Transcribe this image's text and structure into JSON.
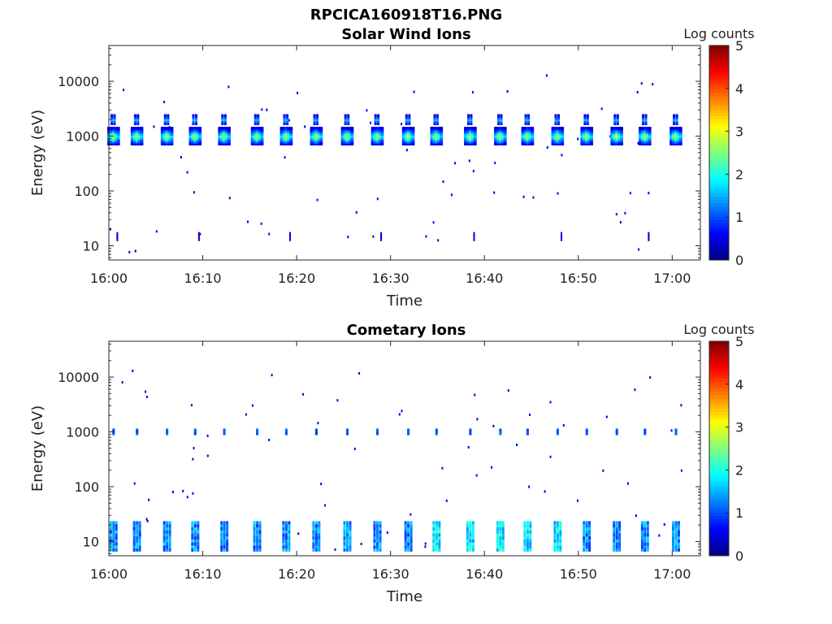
{
  "figure_title": "RPCICA160918T16.PNG",
  "chart_data": [
    {
      "type": "heatmap",
      "title": "Solar Wind Ions",
      "xlabel": "Time",
      "ylabel": "Energy (eV)",
      "x_ticks": [
        "16:00",
        "16:10",
        "16:20",
        "16:30",
        "16:40",
        "16:50",
        "17:00"
      ],
      "x_range_minutes": [
        0,
        63
      ],
      "y_scale": "log",
      "y_range": [
        5.5,
        45000
      ],
      "y_ticks": [
        10,
        100,
        1000,
        10000
      ],
      "y_tick_labels": [
        "10",
        "100",
        "1000",
        "10000"
      ],
      "colorbar": {
        "label": "Log counts",
        "range": [
          0,
          5
        ],
        "ticks": [
          "0",
          "1",
          "2",
          "3",
          "4",
          "5"
        ],
        "colormap": "jet"
      },
      "scan_times_minutes": [
        0.5,
        3.0,
        6.2,
        9.2,
        12.3,
        15.8,
        18.9,
        22.1,
        25.4,
        28.6,
        31.9,
        34.9,
        38.5,
        41.7,
        44.6,
        47.8,
        50.9,
        54.1,
        57.1,
        60.4
      ],
      "main_peak_energy_ev": 1000,
      "main_peak_log_counts": 2.9,
      "secondary_peak_energy_ev": 2000,
      "secondary_peak_log_counts": 1.4
    },
    {
      "type": "heatmap",
      "title": "Cometary Ions",
      "xlabel": "Time",
      "ylabel": "Energy (eV)",
      "x_ticks": [
        "16:00",
        "16:10",
        "16:20",
        "16:30",
        "16:40",
        "16:50",
        "17:00"
      ],
      "x_range_minutes": [
        0,
        63
      ],
      "y_scale": "log",
      "y_range": [
        5.5,
        45000
      ],
      "y_ticks": [
        10,
        100,
        1000,
        10000
      ],
      "y_tick_labels": [
        "10",
        "100",
        "1000",
        "10000"
      ],
      "colorbar": {
        "label": "Log counts",
        "range": [
          0,
          5
        ],
        "ticks": [
          "0",
          "1",
          "2",
          "3",
          "4",
          "5"
        ],
        "colormap": "jet"
      },
      "scan_times_minutes": [
        0.5,
        3.0,
        6.2,
        9.2,
        12.3,
        15.8,
        18.9,
        22.1,
        25.4,
        28.6,
        31.9,
        34.9,
        38.5,
        41.7,
        44.6,
        47.8,
        50.9,
        54.1,
        57.1,
        60.4
      ],
      "low_energy_band_ev": [
        7,
        22
      ],
      "low_energy_log_counts": 1.5,
      "high_energy_band_ev": 1000,
      "high_energy_log_counts": 0.9
    }
  ]
}
